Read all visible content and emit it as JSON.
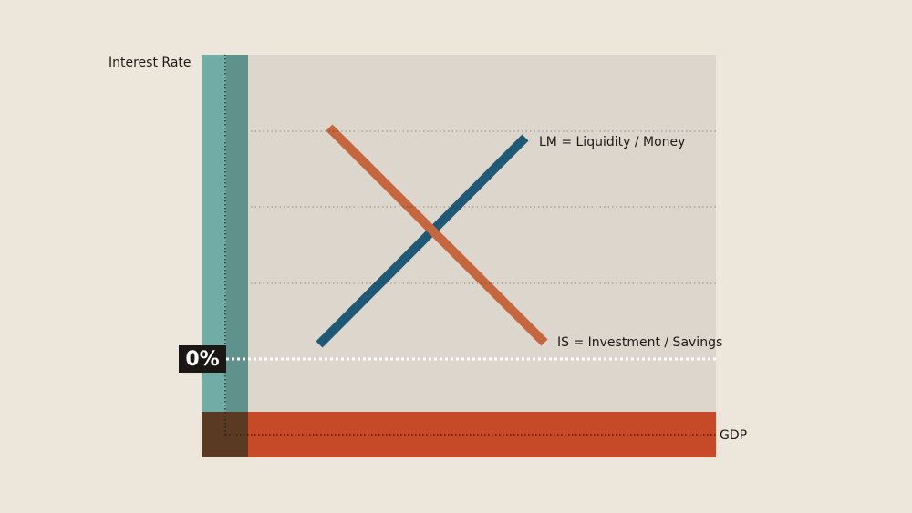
{
  "axes": {
    "y_label": "Interest Rate",
    "x_label": "GDP",
    "zero_label": "0%"
  },
  "curves": [
    {
      "label": "LM = Liquidity / Money"
    },
    {
      "label": "IS = Investment / Savings"
    }
  ]
}
